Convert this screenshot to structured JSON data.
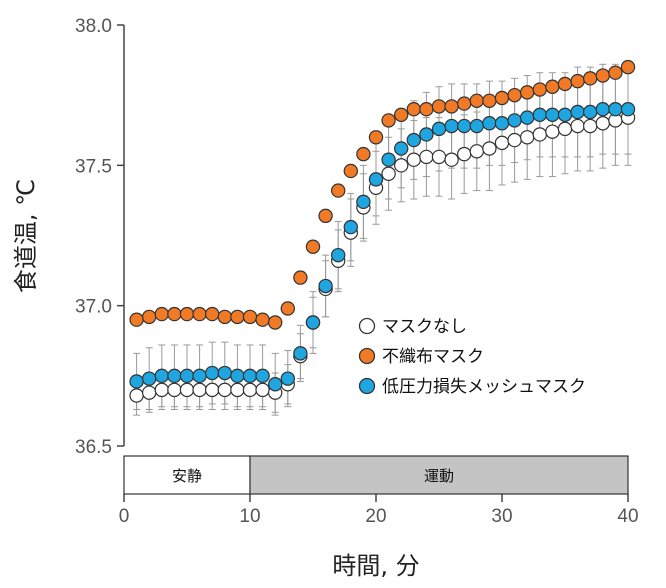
{
  "chart_data": {
    "type": "scatter",
    "xlabel": "時間, 分",
    "ylabel": "食道温, ℃",
    "xlim": [
      0,
      40
    ],
    "ylim": [
      36.5,
      38.0
    ],
    "x_ticks": [
      "0",
      "10",
      "20",
      "30",
      "40"
    ],
    "y_ticks": [
      "36.5",
      "37.0",
      "37.5",
      "38.0"
    ],
    "legend_position": "lower-right-inside",
    "x": [
      1,
      2,
      3,
      4,
      5,
      6,
      7,
      8,
      9,
      10,
      11,
      12,
      13,
      14,
      15,
      16,
      17,
      18,
      19,
      20,
      21,
      22,
      23,
      24,
      25,
      26,
      27,
      28,
      29,
      30,
      31,
      32,
      33,
      34,
      35,
      36,
      37,
      38,
      39,
      40
    ],
    "series": [
      {
        "name": "マスクなし",
        "color": "#ffffff",
        "stroke": "#333333",
        "values": [
          36.68,
          36.69,
          36.7,
          36.7,
          36.7,
          36.7,
          36.7,
          36.7,
          36.7,
          36.7,
          36.7,
          36.69,
          36.72,
          36.82,
          36.94,
          37.06,
          37.16,
          37.26,
          37.35,
          37.42,
          37.47,
          37.5,
          37.52,
          37.53,
          37.53,
          37.52,
          37.54,
          37.55,
          37.56,
          37.58,
          37.59,
          37.6,
          37.61,
          37.62,
          37.63,
          37.64,
          37.64,
          37.65,
          37.66,
          37.67
        ],
        "error": [
          0.07,
          0.07,
          0.07,
          0.07,
          0.07,
          0.07,
          0.07,
          0.07,
          0.07,
          0.07,
          0.07,
          0.07,
          0.07,
          0.08,
          0.09,
          0.1,
          0.11,
          0.12,
          0.12,
          0.13,
          0.13,
          0.13,
          0.14,
          0.14,
          0.14,
          0.14,
          0.14,
          0.14,
          0.15,
          0.15,
          0.15,
          0.15,
          0.15,
          0.16,
          0.16,
          0.16,
          0.16,
          0.16,
          0.16,
          0.17
        ]
      },
      {
        "name": "不織布マスク",
        "color": "#f07a25",
        "stroke": "#333333",
        "values": [
          36.95,
          36.96,
          36.97,
          36.97,
          36.97,
          36.97,
          36.97,
          36.96,
          36.96,
          36.96,
          36.95,
          36.94,
          36.99,
          37.1,
          37.21,
          37.32,
          37.41,
          37.48,
          37.54,
          37.6,
          37.66,
          37.68,
          37.7,
          37.7,
          37.71,
          37.71,
          37.72,
          37.73,
          37.73,
          37.74,
          37.75,
          37.76,
          37.77,
          37.78,
          37.79,
          37.8,
          37.81,
          37.82,
          37.83,
          37.85
        ]
      },
      {
        "name": "低圧力損失メッシュマスク",
        "color": "#1fa6e0",
        "stroke": "#333333",
        "values": [
          36.73,
          36.74,
          36.75,
          36.75,
          36.75,
          36.75,
          36.76,
          36.76,
          36.75,
          36.75,
          36.75,
          36.72,
          36.74,
          36.83,
          36.94,
          37.07,
          37.18,
          37.28,
          37.37,
          37.45,
          37.52,
          37.56,
          37.59,
          37.61,
          37.63,
          37.64,
          37.64,
          37.64,
          37.65,
          37.65,
          37.66,
          37.67,
          37.68,
          37.68,
          37.68,
          37.69,
          37.69,
          37.7,
          37.7,
          37.7
        ],
        "error": [
          0.1,
          0.11,
          0.11,
          0.11,
          0.11,
          0.11,
          0.11,
          0.11,
          0.11,
          0.11,
          0.11,
          0.11,
          0.1,
          0.1,
          0.11,
          0.11,
          0.12,
          0.12,
          0.13,
          0.13,
          0.14,
          0.14,
          0.14,
          0.15,
          0.15,
          0.15,
          0.15,
          0.15,
          0.15,
          0.15,
          0.15,
          0.15,
          0.15,
          0.15,
          0.15,
          0.16,
          0.16,
          0.16,
          0.16,
          0.16
        ]
      }
    ],
    "phases": [
      {
        "label": "安静",
        "start": 0,
        "end": 10,
        "fill": "#ffffff"
      },
      {
        "label": "運動",
        "start": 10,
        "end": 40,
        "fill": "#c4c4c4"
      }
    ]
  }
}
